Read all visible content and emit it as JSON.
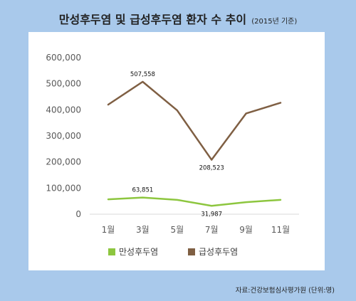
{
  "title": "만성후두염 및 급성후두염 환자 수 추이",
  "subtitle": "(2015년 기준)",
  "source": "자료:건강보험심사평가원 (단위:명)",
  "chart_data": {
    "type": "line",
    "title": "만성후두염 및 급성후두염 환자 수 추이",
    "subtitle": "(2015년 기준)",
    "categories": [
      "1월",
      "3월",
      "5월",
      "7월",
      "9월",
      "11월"
    ],
    "ylim": [
      0,
      600000
    ],
    "yticks": [
      0,
      100000,
      200000,
      300000,
      400000,
      500000,
      600000
    ],
    "ytick_labels": [
      "0",
      "100,000",
      "200,000",
      "300,000",
      "400,000",
      "500,000",
      "600,000"
    ],
    "grid": false,
    "legend_position": "bottom",
    "series": [
      {
        "name": "만성후두염",
        "color": "#8dc63f",
        "values": [
          57000,
          63851,
          55000,
          31987,
          46000,
          55000
        ],
        "annotations": [
          {
            "index": 1,
            "label": "63,851"
          },
          {
            "index": 3,
            "label": "31,987"
          }
        ]
      },
      {
        "name": "급성후두염",
        "color": "#7f5f43",
        "values": [
          420000,
          507558,
          398000,
          208523,
          386000,
          427000
        ],
        "annotations": [
          {
            "index": 1,
            "label": "507,558"
          },
          {
            "index": 3,
            "label": "208,523"
          }
        ]
      }
    ]
  }
}
